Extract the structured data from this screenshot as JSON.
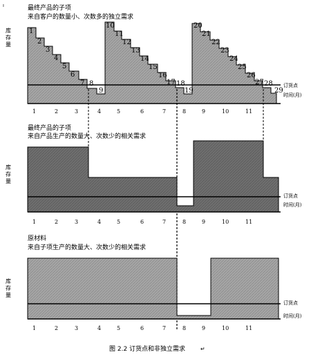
{
  "corner_mark": "ı",
  "panel1": {
    "title": "最终产品的子项",
    "subtitle": "来自客户的数量小、次数多的独立需求",
    "y_label": [
      "库",
      "存",
      "量"
    ],
    "levels": [
      "1",
      "2",
      "3",
      "4",
      "5",
      "6",
      "7",
      "8",
      "9",
      "10",
      "11",
      "12",
      "13",
      "14",
      "15",
      "16",
      "17",
      "18",
      "19",
      "20",
      "21",
      "22",
      "23",
      "24",
      "25",
      "26",
      "27",
      "28",
      "29"
    ],
    "reorder_label": "订货点",
    "time_label": "时间(月)",
    "months": [
      "1",
      "2",
      "3",
      "4",
      "5",
      "6",
      "7",
      "8",
      "9",
      "10",
      "11"
    ]
  },
  "panel2": {
    "title": "最终产品的子项",
    "subtitle": "来自产品生产的数量大、次数少的相关需求",
    "y_label": [
      "库",
      "存",
      "量"
    ],
    "reorder_label": "订货点",
    "time_label": "时间(月)",
    "months": [
      "1",
      "2",
      "3",
      "4",
      "5",
      "6",
      "7",
      "8",
      "9",
      "10",
      "11"
    ]
  },
  "panel3": {
    "title": "原材料",
    "subtitle": "来自子项生产的数量大、次数少的相关需求",
    "y_label": [
      "库",
      "存",
      "量"
    ],
    "reorder_label": "订货点",
    "time_label": "时间(月)",
    "months": [
      "1",
      "2",
      "3",
      "4",
      "5",
      "6",
      "7",
      "8",
      "9",
      "10",
      "11"
    ]
  },
  "caption": "图 2.2   订货点和非独立需求",
  "return_mark": "↵",
  "colors": {
    "fill": "#a0a0a0",
    "fill_dark": "#6e6e6e",
    "line": "#000000"
  }
}
